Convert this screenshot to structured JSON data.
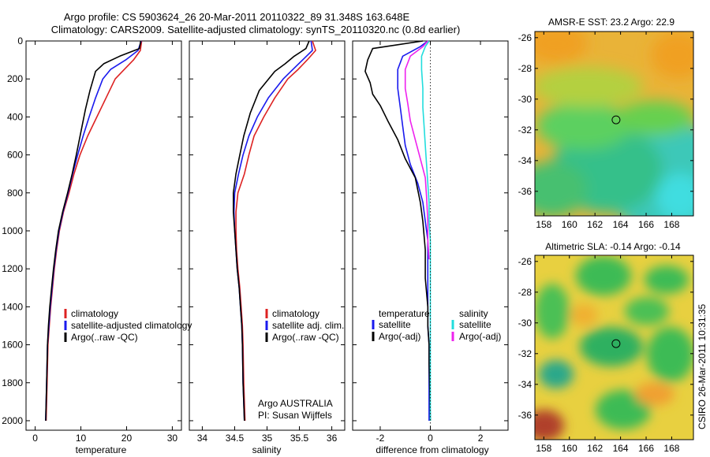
{
  "header": {
    "line1": "Argo profile: CS 5903624_26 20-Mar-2011 20110322_89 31.348S 163.648E",
    "line2": "Climatology: CARS2009. Satellite-adjusted climatology: synTS_20110320.nc (0.8d earlier)"
  },
  "side_label": "CSIRO 26-Mar-2011 10:31:35",
  "colors": {
    "climatology": "#dd2222",
    "satellite": "#1a1aee",
    "argo": "#000000",
    "sal_satellite": "#22dddd",
    "sal_argo": "#ee22ee"
  },
  "chart_data": [
    {
      "type": "line",
      "xlabel": "temperature",
      "xlim": [
        -2,
        32
      ],
      "ylim": [
        0,
        2050
      ],
      "xticks": [
        "0",
        "10",
        "20",
        "30"
      ],
      "yticks": [
        "0",
        "200",
        "400",
        "600",
        "800",
        "1000",
        "1200",
        "1400",
        "1600",
        "1800",
        "2000"
      ],
      "y_reversed": true,
      "legend": [
        "climatology",
        "satellite-adjusted climatology",
        "Argo(..raw -QC)"
      ],
      "series": [
        {
          "name": "climatology",
          "color": "#dd2222",
          "x": [
            23.3,
            23.0,
            21.5,
            19.5,
            17.5,
            15.5,
            13.5,
            11.5,
            9.8,
            8.5,
            7.4,
            6.2,
            5.3,
            4.7,
            4.2,
            3.8,
            3.4,
            3.1,
            2.8,
            2.6,
            2.4
          ],
          "y": [
            0,
            50,
            100,
            150,
            200,
            300,
            400,
            500,
            600,
            700,
            800,
            900,
            1000,
            1100,
            1200,
            1300,
            1400,
            1500,
            1600,
            1800,
            2000
          ]
        },
        {
          "name": "satellite-adjusted climatology",
          "color": "#1a1aee",
          "x": [
            23.2,
            22.5,
            19.8,
            16.5,
            14.8,
            13.2,
            11.8,
            10.5,
            9.3,
            8.2,
            7.2,
            6.1,
            5.2,
            4.6,
            4.1,
            3.7,
            3.3,
            3.0,
            2.7,
            2.5,
            2.3
          ],
          "y": [
            0,
            50,
            100,
            150,
            200,
            300,
            400,
            500,
            600,
            700,
            800,
            900,
            1000,
            1100,
            1200,
            1300,
            1400,
            1500,
            1600,
            1800,
            2000
          ]
        },
        {
          "name": "Argo(..raw -QC)",
          "color": "#000000",
          "x": [
            23.1,
            22.8,
            18.5,
            15.0,
            13.2,
            12.0,
            11.0,
            10.0,
            9.0,
            8.1,
            7.1,
            6.0,
            5.1,
            4.5,
            4.0,
            3.6,
            3.2,
            2.9,
            2.7,
            2.5,
            2.3
          ],
          "y": [
            0,
            40,
            80,
            120,
            160,
            260,
            360,
            480,
            600,
            700,
            800,
            900,
            1000,
            1100,
            1200,
            1300,
            1400,
            1500,
            1600,
            1800,
            2000
          ]
        }
      ]
    },
    {
      "type": "line",
      "xlabel": "salinity",
      "xlim": [
        33.8,
        36.2
      ],
      "ylim": [
        0,
        2050
      ],
      "xticks": [
        "34",
        "34.5",
        "35",
        "35.5",
        "36"
      ],
      "y_reversed": true,
      "legend": [
        "climatology",
        "satellite adj. clim.",
        "Argo(..raw -QC)"
      ],
      "annotation": [
        "Argo AUSTRALIA",
        "PI: Susan Wijffels"
      ],
      "series": [
        {
          "name": "climatology",
          "color": "#dd2222",
          "x": [
            35.7,
            35.75,
            35.62,
            35.48,
            35.32,
            35.12,
            34.95,
            34.8,
            34.72,
            34.65,
            34.55,
            34.52,
            34.52,
            34.53,
            34.55,
            34.58,
            34.6,
            34.62,
            34.63,
            34.64,
            34.66
          ],
          "y": [
            0,
            50,
            100,
            150,
            200,
            300,
            400,
            500,
            600,
            700,
            800,
            900,
            1000,
            1100,
            1200,
            1300,
            1400,
            1500,
            1600,
            1800,
            2000
          ]
        },
        {
          "name": "satellite adj. clim.",
          "color": "#1a1aee",
          "x": [
            35.68,
            35.7,
            35.55,
            35.4,
            35.25,
            35.02,
            34.85,
            34.72,
            34.63,
            34.56,
            34.5,
            34.49,
            34.5,
            34.52,
            34.54,
            34.57,
            34.59,
            34.61,
            34.62,
            34.63,
            34.65
          ],
          "y": [
            0,
            50,
            100,
            150,
            200,
            300,
            400,
            500,
            600,
            700,
            800,
            900,
            1000,
            1100,
            1200,
            1300,
            1400,
            1500,
            1600,
            1800,
            2000
          ]
        },
        {
          "name": "Argo(..raw -QC)",
          "color": "#000000",
          "x": [
            35.65,
            35.6,
            35.42,
            35.28,
            35.12,
            34.88,
            34.74,
            34.64,
            34.58,
            34.52,
            34.48,
            34.48,
            34.5,
            34.52,
            34.54,
            34.57,
            34.59,
            34.61,
            34.62,
            34.63,
            34.65
          ],
          "y": [
            0,
            40,
            80,
            120,
            160,
            260,
            380,
            500,
            600,
            700,
            800,
            900,
            1000,
            1100,
            1200,
            1300,
            1400,
            1500,
            1600,
            1800,
            2000
          ]
        }
      ]
    },
    {
      "type": "line",
      "xlabel": "difference from climatology",
      "xlim": [
        -3.1,
        3.1
      ],
      "ylim": [
        0,
        2050
      ],
      "xticks": [
        "-2",
        "0",
        "2"
      ],
      "y_reversed": true,
      "zero_line": 0,
      "legend_groups": [
        {
          "title": "temperature",
          "entries": [
            "satellite",
            "Argo(-adj)"
          ]
        },
        {
          "title": "salinity",
          "entries": [
            "satellite",
            "Argo(-adj)"
          ]
        }
      ],
      "series": [
        {
          "name": "satellite",
          "group": "temperature",
          "color": "#1a1aee",
          "x": [
            -0.1,
            -0.4,
            -1.1,
            -1.3,
            -1.3,
            -1.2,
            -1.1,
            -1.0,
            -0.8,
            -0.5,
            -0.3,
            -0.2,
            -0.1,
            -0.1,
            -0.1,
            -0.1,
            -0.1,
            -0.05,
            -0.05,
            -0.05,
            -0.05
          ],
          "y": [
            0,
            30,
            80,
            150,
            250,
            350,
            450,
            550,
            650,
            750,
            850,
            950,
            1050,
            1150,
            1300,
            1400,
            1500,
            1600,
            1700,
            1850,
            2000
          ]
        },
        {
          "name": "Argo(-adj)",
          "group": "temperature",
          "color": "#000000",
          "x": [
            -0.3,
            -2.3,
            -2.5,
            -2.6,
            -2.4,
            -2.3,
            -2.0,
            -1.7,
            -1.3,
            -1.0,
            -0.6,
            -0.4,
            -0.3,
            -0.2,
            -0.2,
            -0.1,
            -0.1,
            -0.05,
            -0.05,
            -0.02,
            0.0
          ],
          "y": [
            0,
            40,
            100,
            160,
            220,
            280,
            340,
            420,
            520,
            620,
            720,
            850,
            950,
            1100,
            1250,
            1400,
            1500,
            1600,
            1700,
            1850,
            2000
          ]
        },
        {
          "name": "satellite",
          "group": "salinity",
          "color": "#22dddd",
          "x": [
            -0.05,
            -0.2,
            -0.35,
            -0.35,
            -0.3,
            -0.3,
            -0.25,
            -0.2,
            -0.15,
            -0.1,
            -0.05,
            -0.05,
            0.0,
            0.0,
            0.0,
            0.0,
            0.0,
            0.0,
            0.0,
            0.0,
            0.0
          ],
          "y": [
            0,
            30,
            80,
            150,
            250,
            350,
            450,
            550,
            650,
            750,
            850,
            950,
            1050,
            1150,
            1300,
            1400,
            1500,
            1600,
            1700,
            1850,
            2000
          ]
        },
        {
          "name": "Argo(-adj)",
          "group": "salinity",
          "color": "#ee22ee",
          "x": [
            -0.1,
            -0.3,
            -0.8,
            -1.0,
            -1.0,
            -0.9,
            -0.8,
            -0.6,
            -0.4,
            -0.2,
            -0.15,
            -0.1,
            -0.1,
            -0.05
          ],
          "y": [
            0,
            30,
            80,
            150,
            250,
            330,
            420,
            520,
            620,
            720,
            820,
            950,
            1050,
            1150
          ]
        }
      ]
    },
    {
      "type": "heatmap",
      "title": "AMSR-E SST: 23.2 Argo: 22.9",
      "xlim": [
        157.3,
        169.7
      ],
      "ylim": [
        -37.6,
        -25.6
      ],
      "xticks": [
        "158",
        "160",
        "162",
        "164",
        "166",
        "168"
      ],
      "yticks": [
        "-26",
        "-28",
        "-30",
        "-32",
        "-34",
        "-36"
      ],
      "marker": {
        "lon": 163.648,
        "lat": -31.348
      }
    },
    {
      "type": "heatmap",
      "title": "Altimetric SLA: -0.14 Argo: -0.14",
      "xlim": [
        157.3,
        169.7
      ],
      "ylim": [
        -37.6,
        -25.6
      ],
      "xticks": [
        "158",
        "160",
        "162",
        "164",
        "166",
        "168"
      ],
      "yticks": [
        "-26",
        "-28",
        "-30",
        "-32",
        "-34",
        "-36"
      ],
      "marker": {
        "lon": 163.648,
        "lat": -31.348
      }
    }
  ]
}
